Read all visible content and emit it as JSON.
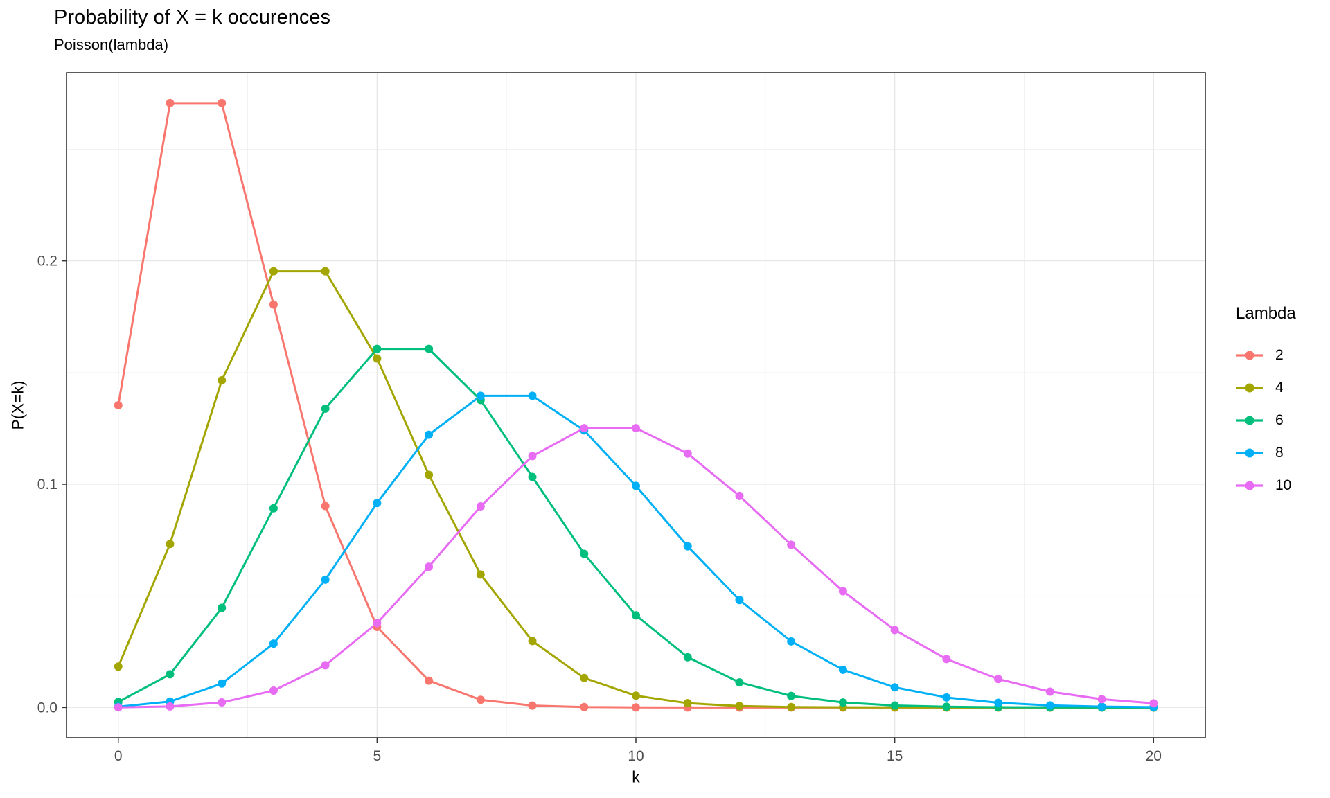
{
  "chart_data": {
    "type": "line",
    "title": "Probability of X = k occurences",
    "subtitle": "Poisson(lambda)",
    "xlabel": "k",
    "ylabel": "P(X=k)",
    "legend": {
      "title": "Lambda",
      "position": "right"
    },
    "x": [
      0,
      1,
      2,
      3,
      4,
      5,
      6,
      7,
      8,
      9,
      10,
      11,
      12,
      13,
      14,
      15,
      16,
      17,
      18,
      19,
      20
    ],
    "series": [
      {
        "name": "2",
        "lambda": 2,
        "color": "#F8766D",
        "values": [
          0.13534,
          0.27067,
          0.27067,
          0.18045,
          0.09022,
          0.03609,
          0.01203,
          0.00344,
          0.00086,
          0.00019,
          4e-05,
          1e-05,
          0,
          0,
          0,
          0,
          0,
          0,
          0,
          0,
          0
        ]
      },
      {
        "name": "4",
        "lambda": 4,
        "color": "#A3A500",
        "values": [
          0.01832,
          0.07326,
          0.14653,
          0.19537,
          0.19537,
          0.15629,
          0.1042,
          0.05954,
          0.02977,
          0.01323,
          0.00529,
          0.00192,
          0.00064,
          0.0002,
          6e-05,
          2e-05,
          1e-05,
          0,
          0,
          0,
          0
        ]
      },
      {
        "name": "6",
        "lambda": 6,
        "color": "#00BF7D",
        "values": [
          0.00248,
          0.01487,
          0.04462,
          0.08924,
          0.13385,
          0.16062,
          0.16062,
          0.13768,
          0.10326,
          0.06884,
          0.0413,
          0.02253,
          0.01126,
          0.0052,
          0.00223,
          0.00089,
          0.00033,
          0.00012,
          4e-05,
          1e-05,
          0
        ]
      },
      {
        "name": "8",
        "lambda": 8,
        "color": "#00B0F6",
        "values": [
          0.00034,
          0.00268,
          0.01073,
          0.02863,
          0.05725,
          0.0916,
          0.12214,
          0.13959,
          0.13959,
          0.12408,
          0.09926,
          0.07219,
          0.04813,
          0.02962,
          0.01692,
          0.00903,
          0.00451,
          0.00212,
          0.00094,
          0.0004,
          0.00016
        ]
      },
      {
        "name": "10",
        "lambda": 10,
        "color": "#E76BF3",
        "values": [
          5e-05,
          0.00045,
          0.00227,
          0.00757,
          0.01892,
          0.03783,
          0.06306,
          0.09008,
          0.1126,
          0.12511,
          0.12511,
          0.11374,
          0.09478,
          0.07291,
          0.05208,
          0.03472,
          0.0217,
          0.01276,
          0.00709,
          0.00373,
          0.00187
        ]
      }
    ],
    "x_ticks": {
      "values": [
        0,
        5,
        10,
        15,
        20
      ],
      "labels": [
        "0",
        "5",
        "10",
        "15",
        "20"
      ],
      "minor": [
        2.5,
        7.5,
        12.5,
        17.5
      ]
    },
    "y_ticks": {
      "values": [
        0,
        0.1,
        0.2
      ],
      "labels": [
        "0.0",
        "0.1",
        "0.2"
      ],
      "minor": [
        0.05,
        0.15,
        0.25
      ]
    },
    "xlim": [
      -1,
      21
    ],
    "ylim": [
      -0.013537,
      0.284274
    ],
    "grid": {
      "on": true,
      "major_color": "#E7E7E7",
      "minor_color": "#F1F1F1"
    },
    "style": {
      "panel_border_color": "#333333",
      "tick_color": "#333333",
      "tick_label_color": "#4D4D4D",
      "line_width": 3,
      "point_radius": 6
    }
  }
}
